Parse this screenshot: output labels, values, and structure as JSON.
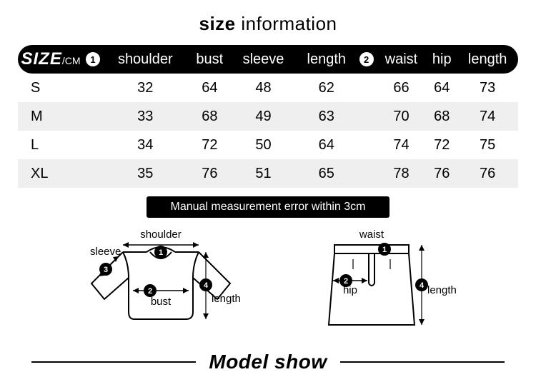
{
  "title_bold": "size",
  "title_rest": " information",
  "header": {
    "size_label": "SIZE",
    "size_unit": "/CM",
    "badge1": "1",
    "badge2": "2",
    "cols": [
      "shoulder",
      "bust",
      "sleeve",
      "length",
      "waist",
      "hip",
      "length"
    ]
  },
  "rows": [
    {
      "size": "S",
      "v": [
        "32",
        "64",
        "48",
        "62",
        "66",
        "64",
        "73"
      ]
    },
    {
      "size": "M",
      "v": [
        "33",
        "68",
        "49",
        "63",
        "70",
        "68",
        "74"
      ]
    },
    {
      "size": "L",
      "v": [
        "34",
        "72",
        "50",
        "64",
        "74",
        "72",
        "75"
      ]
    },
    {
      "size": "XL",
      "v": [
        "35",
        "76",
        "51",
        "65",
        "78",
        "76",
        "76"
      ]
    }
  ],
  "note": "Manual measurement error within 3cm",
  "dia_top": {
    "shoulder": "shoulder",
    "sleeve": "sleeve",
    "bust": "bust",
    "length": "length",
    "n1": "1",
    "n2": "2",
    "n3": "3",
    "n4": "4"
  },
  "dia_skirt": {
    "waist": "waist",
    "hip": "hip",
    "length": "length",
    "n1": "1",
    "n2": "2",
    "n4": "4"
  },
  "model_show": "Model show",
  "colors": {
    "header_bg": "#000000",
    "header_fg": "#ffffff",
    "row_alt": "#efefef",
    "badge_bg": "#ffffff",
    "badge_fg": "#000000"
  }
}
